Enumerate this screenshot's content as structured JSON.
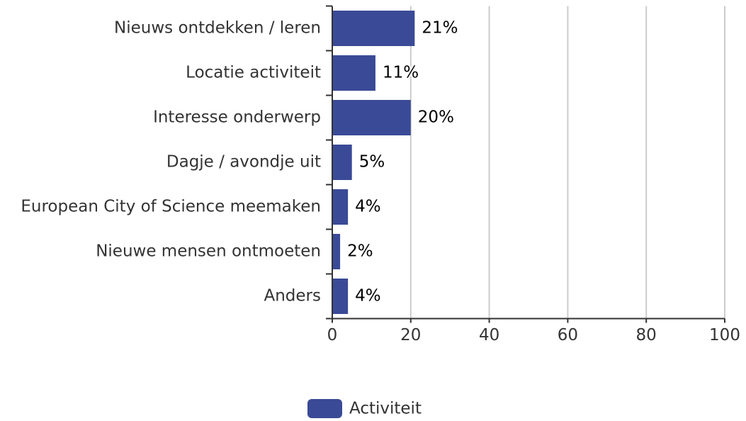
{
  "chart_data": {
    "type": "bar",
    "orientation": "horizontal",
    "categories": [
      "Nieuws ontdekken / leren",
      "Locatie activiteit",
      "Interesse onderwerp",
      "Dagje / avondje uit",
      "European City of Science meemaken",
      "Nieuwe mensen ontmoeten",
      "Anders"
    ],
    "series": [
      {
        "name": "Activiteit",
        "color": "#3a4a96",
        "values": [
          21,
          11,
          20,
          5,
          4,
          2,
          4
        ],
        "value_labels": [
          "21%",
          "11%",
          "20%",
          "5%",
          "4%",
          "2%",
          "4%"
        ]
      }
    ],
    "xlim": [
      0,
      100
    ],
    "xticks": [
      0,
      20,
      40,
      60,
      80,
      100
    ],
    "grid": true,
    "legend": "bottom"
  }
}
